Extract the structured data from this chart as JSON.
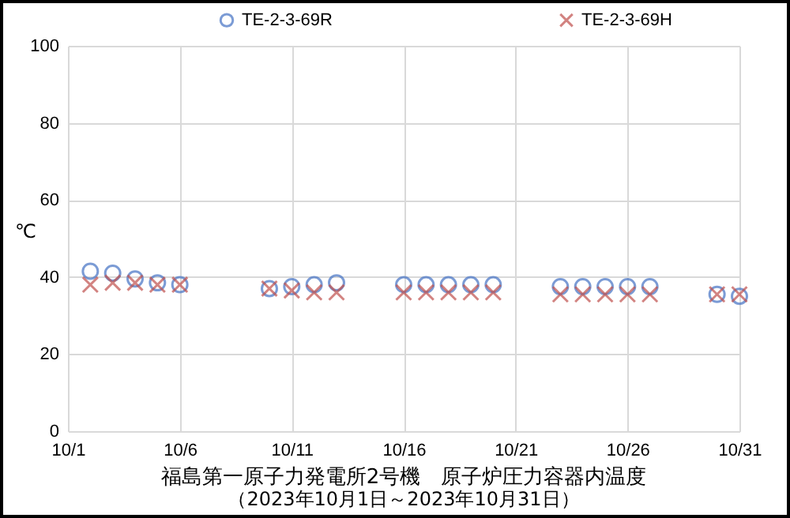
{
  "chart_data": {
    "type": "scatter",
    "title": "福島第一原子力発電所2号機　原子炉圧力容器内温度",
    "subtitle": "（2023年10月1日～2023年10月31日）",
    "ylabel": "℃",
    "x": [
      "--10-02",
      "--10-03",
      "--10-04",
      "--10-05",
      "--10-06",
      "--10-10",
      "--10-11",
      "--10-12",
      "--10-13",
      "--10-16",
      "--10-17",
      "--10-18",
      "--10-19",
      "--10-20",
      "--10-23",
      "--10-24",
      "--10-25",
      "--10-26",
      "--10-27",
      "--10-30",
      "--10-31"
    ],
    "series": [
      {
        "name": "TE-2-3-69R",
        "color": "#4472c4",
        "marker": "circle",
        "values": [
          41.5,
          41,
          39.5,
          38.5,
          38,
          37,
          37.5,
          38,
          38.5,
          38,
          38,
          38,
          38,
          38,
          37.5,
          37.5,
          37.5,
          37.5,
          37.5,
          35.5,
          35
        ]
      },
      {
        "name": "TE-2-3-69H",
        "color": "#c0504d",
        "marker": "cross",
        "values": [
          38,
          38.5,
          38.5,
          38,
          38,
          37,
          36.5,
          36,
          36,
          36,
          36,
          36,
          36,
          36,
          35.5,
          35.5,
          35.5,
          35.5,
          35.5,
          35.5,
          35.5
        ]
      }
    ],
    "xlim": [
      "--10-01",
      "--10-31"
    ],
    "xticks": [
      {
        "value": "--10-01",
        "label": "10/1"
      },
      {
        "value": "--10-06",
        "label": "10/6"
      },
      {
        "value": "--10-11",
        "label": "10/11"
      },
      {
        "value": "--10-16",
        "label": "10/16"
      },
      {
        "value": "--10-21",
        "label": "10/21"
      },
      {
        "value": "--10-26",
        "label": "10/26"
      },
      {
        "value": "--10-31",
        "label": "10/31"
      }
    ],
    "ylim": [
      0,
      100
    ],
    "yticks": [
      0,
      20,
      40,
      60,
      80,
      100
    ],
    "grid": true,
    "legend": "top"
  }
}
